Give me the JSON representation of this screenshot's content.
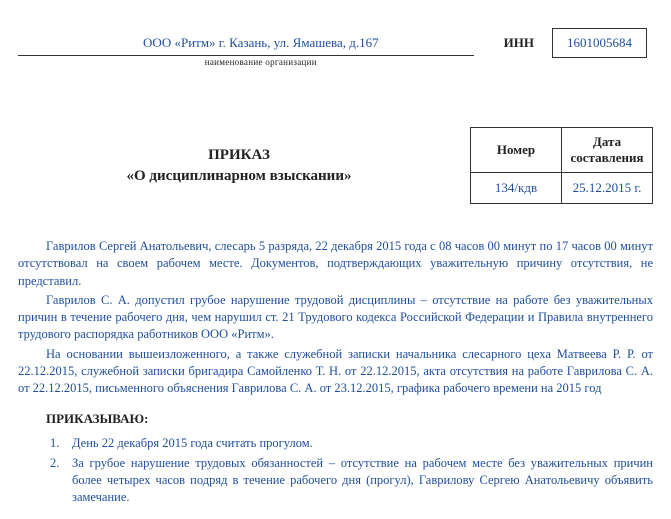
{
  "header": {
    "org_name": "ООО «Ритм» г. Казань, ул. Ямашева, д.167",
    "org_caption": "наименование организации",
    "inn_label": "ИНН",
    "inn_value": "1601005684"
  },
  "title": {
    "main": "ПРИКАЗ",
    "sub": "«О дисциплинарном взыскании»"
  },
  "meta": {
    "number_header": "Номер",
    "date_header": "Дата составления",
    "number_value": "134/кдв",
    "date_value": "25.12.2015 г."
  },
  "body": {
    "p1": "Гаврилов Сергей Анатольевич, слесарь 5 разряда, 22 декабря 2015 года с 08 часов 00 минут по 17 часов 00 минут отсутствовал на своем рабочем месте. Документов, подтверждающих уважительную причину отсутствия, не представил.",
    "p2": "Гаврилов С. А. допустил грубое нарушение трудовой дисциплины – отсутствие на работе без уважительных причин в течение рабочего дня, чем нарушил ст. 21 Трудового кодекса Российской Федерации и Правила внутреннего трудового распорядка работников ООО «Ритм».",
    "p3": "На основании вышеизложенного, а также служебной записки начальника слесарного цеха Матвеева Р. Р. от 22.12.2015, служебной записки бригадира Самойленко Т. Н. от 22.12.2015, акта отсутствия на работе Гаврилова С. А. от 22.12.2015, письменного объяснения Гаврилова С. А. от 23.12.2015, графика рабочего времени на 2015 год"
  },
  "order": {
    "label": "ПРИКАЗЫВАЮ:",
    "items": [
      {
        "n": "1.",
        "t": "День 22 декабря 2015 года считать прогулом."
      },
      {
        "n": "2.",
        "t": "За грубое нарушение трудовых обязанностей – отсутствие на рабочем месте без уважительных причин более четырех часов подряд в течение рабочего дня (прогул), Гаврилову Сергею Анатольевичу объявить замечание."
      }
    ]
  }
}
